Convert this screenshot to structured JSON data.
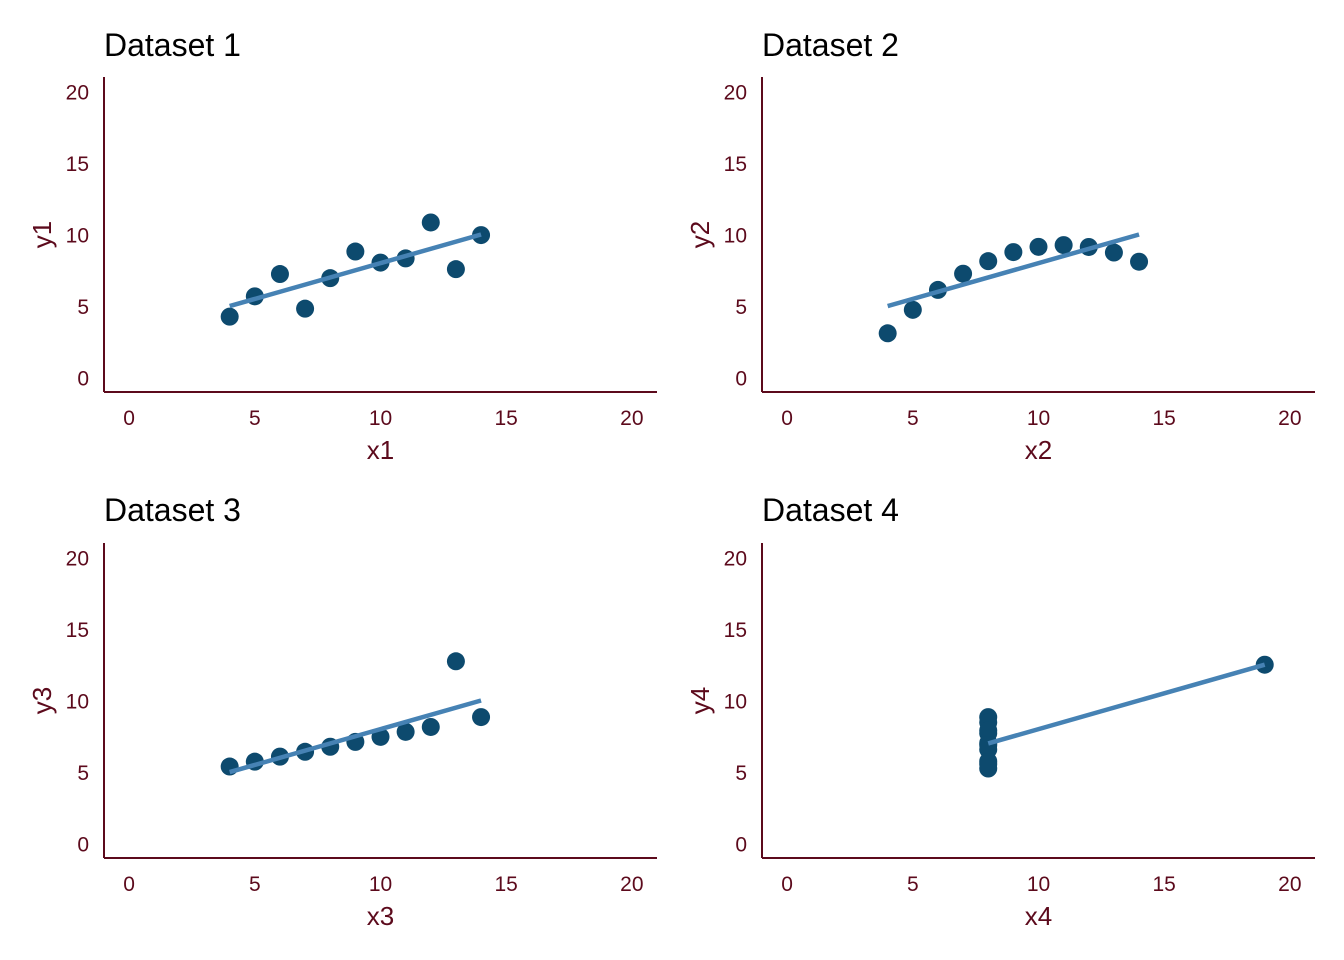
{
  "figure": {
    "axis_color": "#5c0a1c",
    "point_color": "#0d4a6e",
    "fit_color": "#4682b4",
    "background": "#ffffff"
  },
  "chart_data": [
    {
      "type": "scatter",
      "title": "Dataset 1",
      "xlabel": "x1",
      "ylabel": "y1",
      "xlim": [
        -1,
        21
      ],
      "ylim": [
        -1,
        21
      ],
      "xticks": [
        "0",
        "5",
        "10",
        "15",
        "20"
      ],
      "yticks": [
        "0",
        "5",
        "10",
        "15",
        "20"
      ],
      "grid": false,
      "points": [
        [
          10,
          8.04
        ],
        [
          8,
          6.95
        ],
        [
          13,
          7.58
        ],
        [
          9,
          8.81
        ],
        [
          11,
          8.33
        ],
        [
          14,
          9.96
        ],
        [
          6,
          7.24
        ],
        [
          4,
          4.26
        ],
        [
          12,
          10.84
        ],
        [
          7,
          4.82
        ],
        [
          5,
          5.68
        ]
      ],
      "fit": {
        "x": [
          4,
          14
        ],
        "intercept": 3.0,
        "slope": 0.5
      }
    },
    {
      "type": "scatter",
      "title": "Dataset 2",
      "xlabel": "x2",
      "ylabel": "y2",
      "xlim": [
        -1,
        21
      ],
      "ylim": [
        -1,
        21
      ],
      "xticks": [
        "0",
        "5",
        "10",
        "15",
        "20"
      ],
      "yticks": [
        "0",
        "5",
        "10",
        "15",
        "20"
      ],
      "grid": false,
      "points": [
        [
          10,
          9.14
        ],
        [
          8,
          8.14
        ],
        [
          13,
          8.74
        ],
        [
          9,
          8.77
        ],
        [
          11,
          9.26
        ],
        [
          14,
          8.1
        ],
        [
          6,
          6.13
        ],
        [
          4,
          3.1
        ],
        [
          12,
          9.13
        ],
        [
          7,
          7.26
        ],
        [
          5,
          4.74
        ]
      ],
      "fit": {
        "x": [
          4,
          14
        ],
        "intercept": 3.0,
        "slope": 0.5
      }
    },
    {
      "type": "scatter",
      "title": "Dataset 3",
      "xlabel": "x3",
      "ylabel": "y3",
      "xlim": [
        -1,
        21
      ],
      "ylim": [
        -1,
        21
      ],
      "xticks": [
        "0",
        "5",
        "10",
        "15",
        "20"
      ],
      "yticks": [
        "0",
        "5",
        "10",
        "15",
        "20"
      ],
      "grid": false,
      "points": [
        [
          10,
          7.46
        ],
        [
          8,
          6.77
        ],
        [
          13,
          12.74
        ],
        [
          9,
          7.11
        ],
        [
          11,
          7.81
        ],
        [
          14,
          8.84
        ],
        [
          6,
          6.08
        ],
        [
          4,
          5.39
        ],
        [
          12,
          8.15
        ],
        [
          7,
          6.42
        ],
        [
          5,
          5.73
        ]
      ],
      "fit": {
        "x": [
          4,
          14
        ],
        "intercept": 3.0,
        "slope": 0.5
      }
    },
    {
      "type": "scatter",
      "title": "Dataset 4",
      "xlabel": "x4",
      "ylabel": "y4",
      "xlim": [
        -1,
        21
      ],
      "ylim": [
        -1,
        21
      ],
      "xticks": [
        "0",
        "5",
        "10",
        "15",
        "20"
      ],
      "yticks": [
        "0",
        "5",
        "10",
        "15",
        "20"
      ],
      "grid": false,
      "points": [
        [
          8,
          6.58
        ],
        [
          8,
          5.76
        ],
        [
          8,
          7.71
        ],
        [
          8,
          8.84
        ],
        [
          8,
          8.47
        ],
        [
          8,
          7.04
        ],
        [
          8,
          5.25
        ],
        [
          19,
          12.5
        ],
        [
          8,
          5.56
        ],
        [
          8,
          7.91
        ],
        [
          8,
          6.89
        ]
      ],
      "fit": {
        "x": [
          8,
          19
        ],
        "intercept": 3.0,
        "slope": 0.5
      }
    }
  ]
}
